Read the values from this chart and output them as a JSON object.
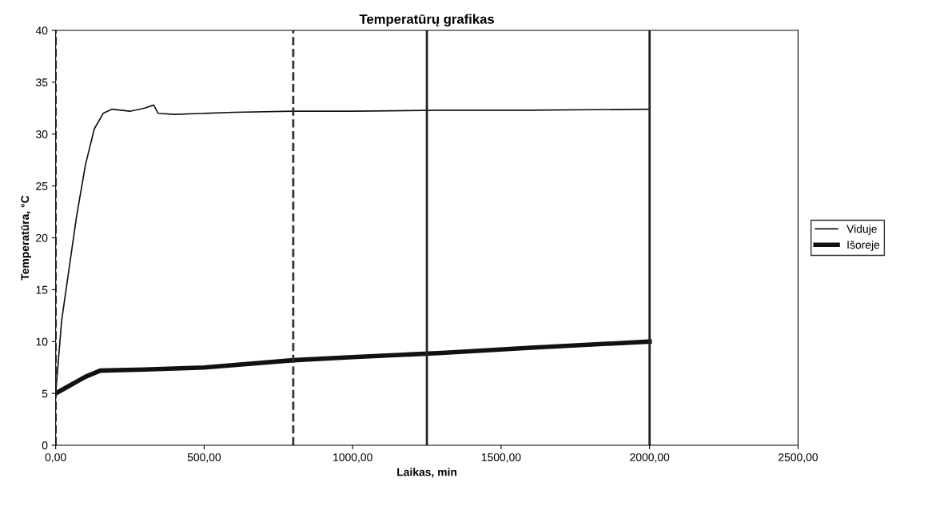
{
  "chart_data": {
    "type": "line",
    "title": "Temperatūrų grafikas",
    "xlabel": "Laikas, min",
    "ylabel": "Temperatūra, °C",
    "xlim": [
      0,
      2500
    ],
    "xticks": [
      {
        "value": 0,
        "label": "0,00"
      },
      {
        "value": 500,
        "label": "500,00"
      },
      {
        "value": 1000,
        "label": "1000,00"
      },
      {
        "value": 1500,
        "label": "1500,00"
      },
      {
        "value": 2000,
        "label": "2000,00"
      },
      {
        "value": 2500,
        "label": "2500,00"
      }
    ],
    "ylim": [
      0,
      40
    ],
    "yticks": [
      0,
      5,
      10,
      15,
      20,
      25,
      30,
      35,
      40
    ],
    "series": [
      {
        "name": "Viduje",
        "color": "#111111",
        "x": [
          0,
          20,
          40,
          70,
          100,
          130,
          160,
          190,
          250,
          300,
          330,
          345,
          400,
          600,
          800,
          1000,
          1300,
          1600,
          2000
        ],
        "values": [
          5,
          12,
          16,
          22,
          27,
          30.5,
          32,
          32.4,
          32.2,
          32.5,
          32.8,
          32,
          31.9,
          32.1,
          32.2,
          32.2,
          32.3,
          32.3,
          32.4
        ]
      },
      {
        "name": "Išoreje",
        "color": "#111111",
        "x": [
          0,
          50,
          100,
          150,
          300,
          500,
          800,
          1000,
          1300,
          1600,
          2000
        ],
        "values": [
          5,
          5.8,
          6.6,
          7.2,
          7.3,
          7.5,
          8.2,
          8.5,
          8.9,
          9.4,
          10
        ]
      }
    ],
    "ref_lines": [
      {
        "axis": "x",
        "value": 0,
        "color": "#333333",
        "line_style": "dashed"
      },
      {
        "axis": "x",
        "value": 800,
        "color": "#333333",
        "line_style": "dashed"
      },
      {
        "axis": "x",
        "value": 1250,
        "color": "#222222",
        "line_style": "solid"
      },
      {
        "axis": "x",
        "value": 2000,
        "color": "#222222",
        "line_style": "solid"
      }
    ],
    "grid": false,
    "legend": "right"
  }
}
